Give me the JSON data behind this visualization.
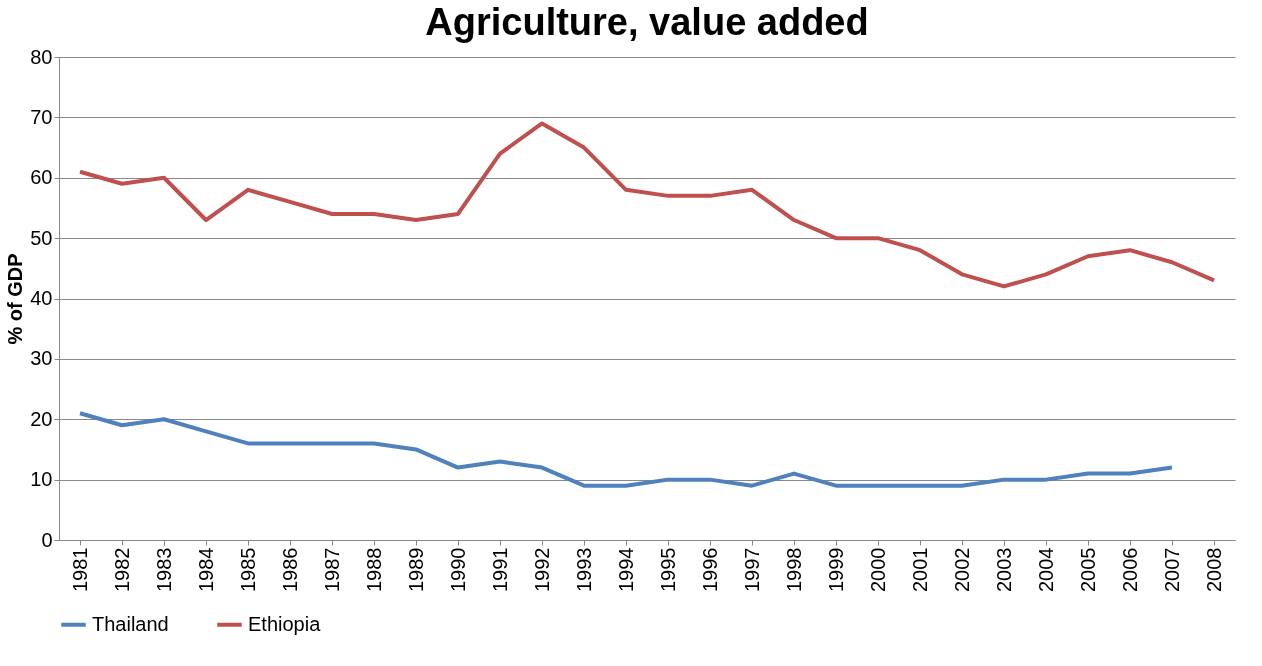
{
  "chart_data": {
    "type": "line",
    "title": "Agriculture, value added",
    "ylabel": "% of GDP",
    "categories": [
      "1981",
      "1982",
      "1983",
      "1984",
      "1985",
      "1986",
      "1987",
      "1988",
      "1989",
      "1990",
      "1991",
      "1992",
      "1993",
      "1994",
      "1995",
      "1996",
      "1997",
      "1998",
      "1999",
      "2000",
      "2001",
      "2002",
      "2003",
      "2004",
      "2005",
      "2006",
      "2007",
      "2008"
    ],
    "series": [
      {
        "name": "Thailand",
        "color": "#4f81bd",
        "values": [
          21,
          19,
          20,
          18,
          16,
          16,
          16,
          16,
          15,
          12,
          13,
          12,
          9,
          9,
          10,
          10,
          9,
          11,
          9,
          9,
          9,
          9,
          10,
          10,
          11,
          11,
          12,
          null
        ]
      },
      {
        "name": "Ethiopia",
        "color": "#c0504d",
        "values": [
          61,
          59,
          60,
          53,
          58,
          56,
          54,
          54,
          53,
          54,
          64,
          69,
          65,
          58,
          57,
          57,
          58,
          53,
          50,
          50,
          48,
          44,
          42,
          44,
          47,
          48,
          46,
          43
        ]
      }
    ],
    "ylim": [
      0,
      80
    ],
    "yticks": [
      0,
      10,
      20,
      30,
      40,
      50,
      60,
      70,
      80
    ],
    "grid": "y",
    "legend": "bottom",
    "marker": "none",
    "line_style": "solid"
  }
}
